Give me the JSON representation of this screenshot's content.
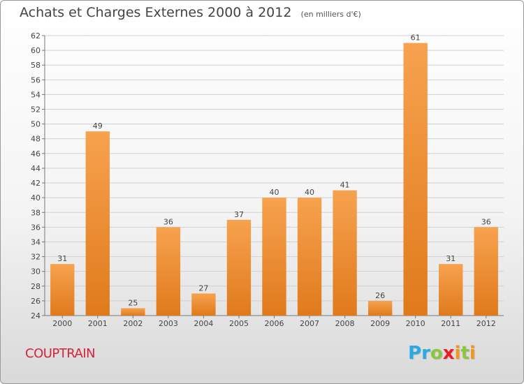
{
  "header": {
    "title": "Achats et Charges Externes 2000 à 2012",
    "unit": "(en milliers d'€)"
  },
  "footer": {
    "place": "COUPTRAIN",
    "logo_letters": [
      "P",
      "r",
      "o",
      "x",
      "i",
      "t",
      "i"
    ],
    "logo_colors": [
      "#29abe2",
      "#29abe2",
      "#8cc63f",
      "#ed1c24",
      "#f7931e",
      "#8cc63f",
      "#f7931e"
    ]
  },
  "chart_data": {
    "type": "bar",
    "categories": [
      "2000",
      "2001",
      "2002",
      "2003",
      "2004",
      "2005",
      "2006",
      "2007",
      "2008",
      "2009",
      "2010",
      "2011",
      "2012"
    ],
    "values": [
      31,
      49,
      25,
      36,
      27,
      37,
      40,
      40,
      41,
      26,
      61,
      31,
      36
    ],
    "ylim": [
      24,
      62
    ],
    "yticks": [
      24,
      26,
      28,
      30,
      32,
      34,
      36,
      38,
      40,
      42,
      44,
      46,
      48,
      50,
      52,
      54,
      56,
      58,
      60,
      62
    ],
    "grid": true,
    "bar_color_light": "#f7a24f",
    "bar_color_dark": "#e07a1c",
    "grid_color": "#d0d0d0"
  }
}
